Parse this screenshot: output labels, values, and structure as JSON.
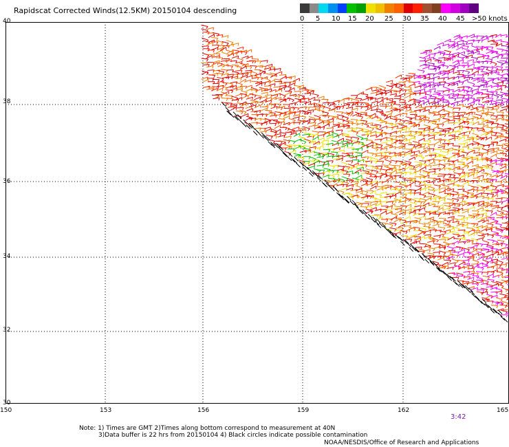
{
  "title": "Rapidscat Corrected Winds(12.5KM) 20150104 descending",
  "legend": {
    "colors": [
      "#3a3a3a",
      "#8a8a8a",
      "#00d8f0",
      "#0090f0",
      "#0040ff",
      "#00c000",
      "#00a000",
      "#f0e000",
      "#f0c000",
      "#f08000",
      "#ff6000",
      "#e00000",
      "#ff2000",
      "#a05030",
      "#804020",
      "#ff00ff",
      "#d000e0",
      "#a000c0",
      "#600080"
    ],
    "labels": [
      "0",
      "5",
      "10",
      "15",
      "20",
      "25",
      "30",
      "35",
      "40",
      "45",
      ">50 knots"
    ]
  },
  "axes": {
    "latitudes": [
      "40",
      "38",
      "36",
      "34",
      "32",
      "30"
    ],
    "longitudes": [
      "150",
      "153",
      "156",
      "159",
      "162",
      "165"
    ]
  },
  "timestamp": "3:42",
  "notes": {
    "line1": "Note: 1) Times are GMT 2)Times along bottom correspond to measurement at 40N",
    "line2": "3)Data buffer is 22 hrs from 20150104 4) Black circles indicate possible contamination",
    "line3": "NOAA/NESDIS/Office of Research and Applications"
  }
}
